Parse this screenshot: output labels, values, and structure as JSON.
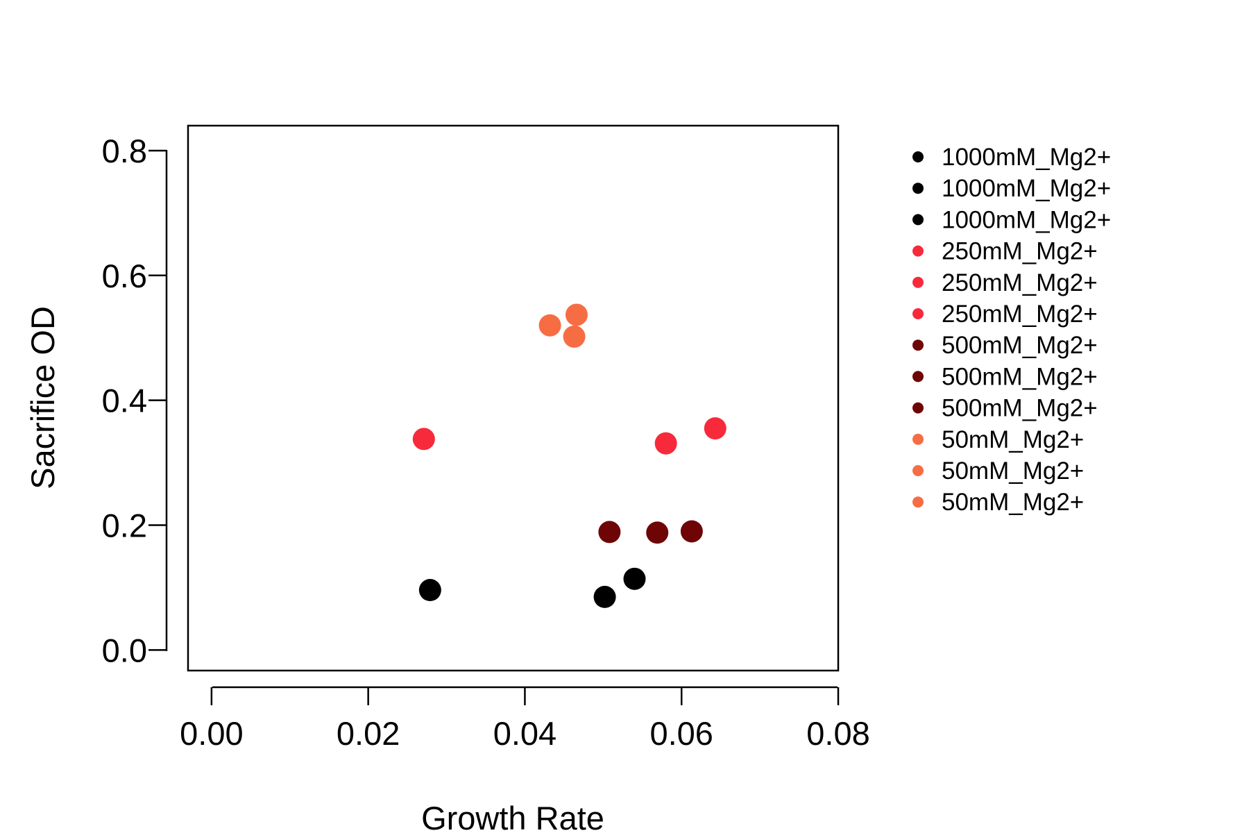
{
  "chart_data": {
    "type": "scatter",
    "title": "",
    "xlabel": "Growth Rate",
    "ylabel": "Sacrifice OD",
    "xlim": [
      -0.003,
      0.08
    ],
    "ylim": [
      -0.033,
      0.84
    ],
    "x_ticks": [
      "0.00",
      "0.02",
      "0.04",
      "0.06",
      "0.08"
    ],
    "y_ticks": [
      "0.0",
      "0.2",
      "0.4",
      "0.6",
      "0.8"
    ],
    "grid": false,
    "legend_position": "right, outside plot",
    "legend": [
      {
        "label": "1000mM_Mg2+",
        "color": "#000000"
      },
      {
        "label": "1000mM_Mg2+",
        "color": "#000000"
      },
      {
        "label": "1000mM_Mg2+",
        "color": "#000000"
      },
      {
        "label": "250mM_Mg2+",
        "color": "#f72a3b"
      },
      {
        "label": "250mM_Mg2+",
        "color": "#f72a3b"
      },
      {
        "label": "250mM_Mg2+",
        "color": "#f72a3b"
      },
      {
        "label": "500mM_Mg2+",
        "color": "#6e0405"
      },
      {
        "label": "500mM_Mg2+",
        "color": "#6e0405"
      },
      {
        "label": "500mM_Mg2+",
        "color": "#6e0405"
      },
      {
        "label": "50mM_Mg2+",
        "color": "#f76d43"
      },
      {
        "label": "50mM_Mg2+",
        "color": "#f76d43"
      },
      {
        "label": "50mM_Mg2+",
        "color": "#f76d43"
      }
    ],
    "series": [
      {
        "name": "1000mM_Mg2+",
        "color": "#000000",
        "points": [
          [
            0.0279,
            0.096
          ],
          [
            0.0502,
            0.085
          ],
          [
            0.054,
            0.114
          ]
        ]
      },
      {
        "name": "250mM_Mg2+",
        "color": "#f72a3b",
        "points": [
          [
            0.0271,
            0.338
          ],
          [
            0.058,
            0.331
          ],
          [
            0.0643,
            0.355
          ]
        ]
      },
      {
        "name": "500mM_Mg2+",
        "color": "#6e0405",
        "points": [
          [
            0.0508,
            0.189
          ],
          [
            0.0569,
            0.188
          ],
          [
            0.0613,
            0.19
          ]
        ]
      },
      {
        "name": "50mM_Mg2+",
        "color": "#f76d43",
        "points": [
          [
            0.0432,
            0.52
          ],
          [
            0.0466,
            0.537
          ],
          [
            0.0463,
            0.502
          ]
        ]
      }
    ]
  }
}
